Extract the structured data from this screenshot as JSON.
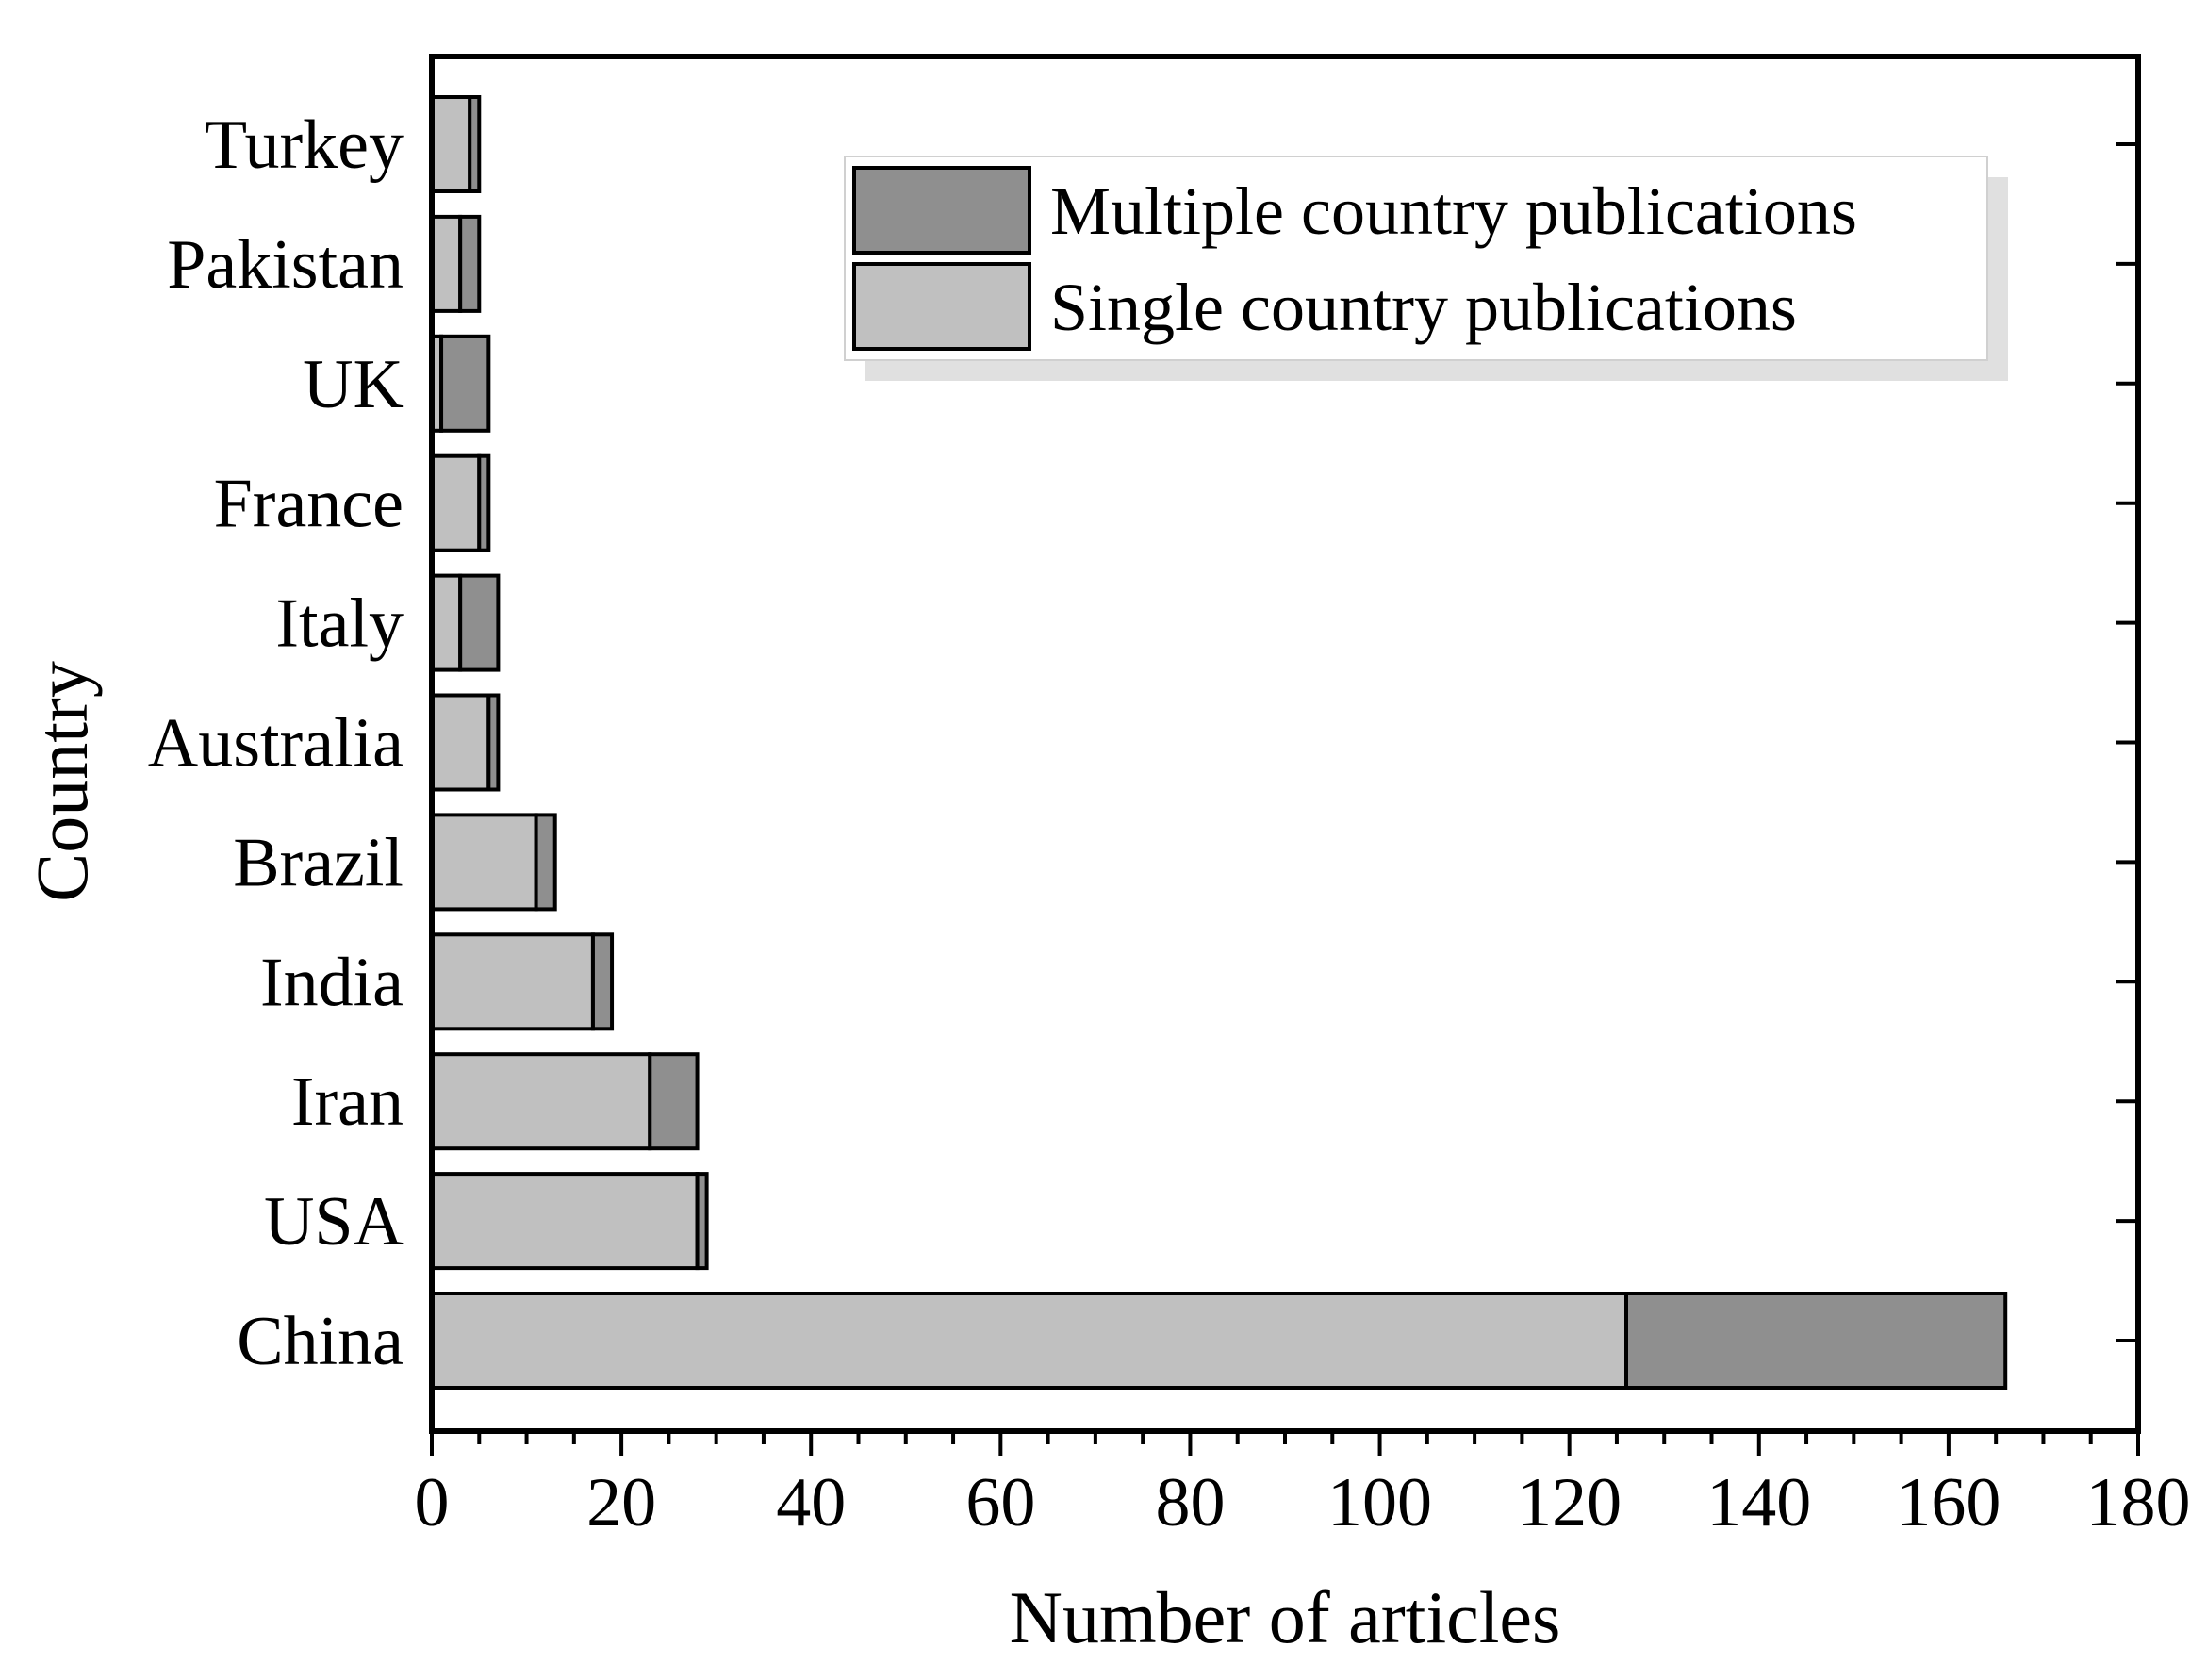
{
  "chart_data": {
    "type": "bar",
    "orientation": "horizontal",
    "stacked": true,
    "title": "",
    "xlabel": "Number of articles",
    "ylabel": "Country",
    "xlim": [
      0,
      180
    ],
    "x_ticks": [
      "0",
      "20",
      "40",
      "60",
      "80",
      "100",
      "120",
      "140",
      "160",
      "180"
    ],
    "grid": false,
    "legend_position": "top-right",
    "categories": [
      "China",
      "USA",
      "Iran",
      "India",
      "Brazil",
      "Australia",
      "Italy",
      "France",
      "UK",
      "Pakistan",
      "Turkey"
    ],
    "series": [
      {
        "name": "Single country publications",
        "color": "#c0c0c0",
        "values": [
          126,
          28,
          23,
          17,
          11,
          6,
          3,
          5,
          1,
          3,
          4
        ]
      },
      {
        "name": "Multiple country publications",
        "color": "#8f8f8f",
        "values": [
          40,
          1,
          5,
          2,
          2,
          1,
          4,
          1,
          5,
          2,
          1
        ]
      }
    ],
    "legend_order": [
      "Multiple country publications",
      "Single country publications"
    ]
  }
}
